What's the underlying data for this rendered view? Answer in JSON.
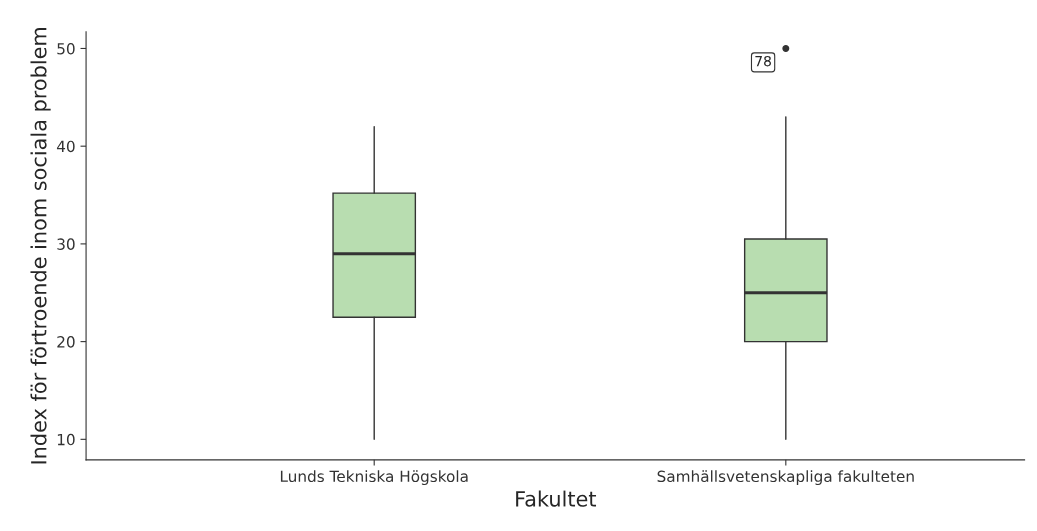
{
  "chart_data": {
    "type": "box",
    "xlabel": "Fakultet",
    "ylabel": "Index för förtroende inom sociala problem",
    "categories": [
      "Lunds Tekniska Högskola",
      "Samhällsvetenskapliga fakulteten"
    ],
    "boxes": [
      {
        "low": 10,
        "q1": 22.5,
        "median": 29,
        "q3": 35.2,
        "high": 42
      },
      {
        "low": 10,
        "q1": 20,
        "median": 25,
        "q3": 30.5,
        "high": 43,
        "outliers": [
          50
        ]
      }
    ],
    "color": "#b8ddb0",
    "ylim": [
      7.9,
      51.7
    ],
    "yticks": [
      10,
      20,
      30,
      40,
      50
    ],
    "annotations": [
      "78"
    ],
    "grid": false
  }
}
